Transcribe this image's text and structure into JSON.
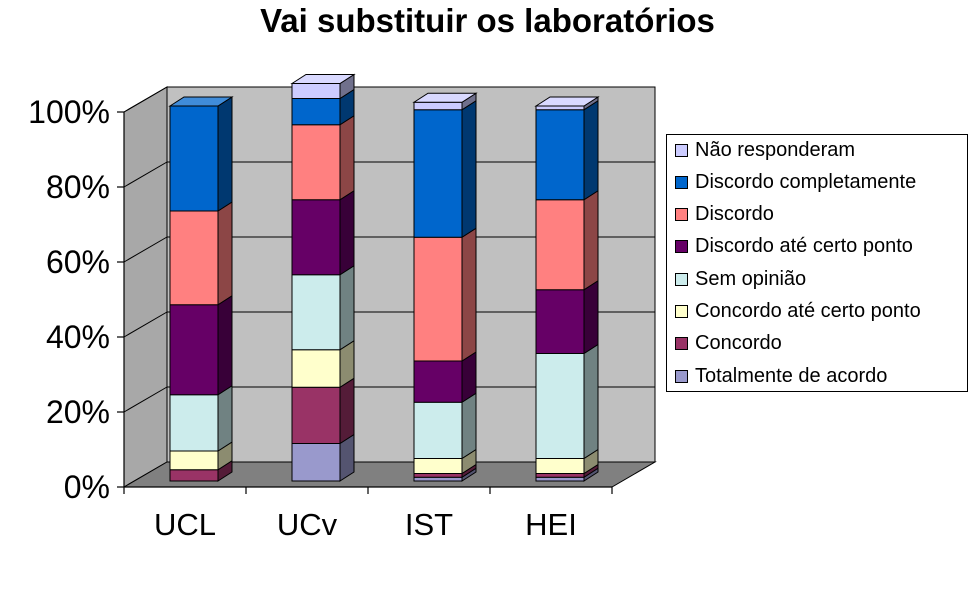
{
  "chart_data": {
    "type": "bar",
    "stacked": true,
    "three_d": true,
    "title": "Vai substituir os laboratórios",
    "categories": [
      "UCL",
      "UCv",
      "IST",
      "HEI"
    ],
    "y_ticks": [
      "0%",
      "20%",
      "40%",
      "60%",
      "80%",
      "100%"
    ],
    "ylim": [
      0,
      100
    ],
    "grid": true,
    "legend_position": "right",
    "series": [
      {
        "name": "Totalmente de acordo",
        "values": [
          0,
          10,
          1,
          1
        ],
        "color": "#9999cc"
      },
      {
        "name": "Concordo",
        "values": [
          3,
          15,
          1,
          1
        ],
        "color": "#993366"
      },
      {
        "name": "Concordo até certo ponto",
        "values": [
          5,
          10,
          4,
          4
        ],
        "color": "#ffffcc"
      },
      {
        "name": "Sem opinião",
        "values": [
          15,
          20,
          15,
          28
        ],
        "color": "#ccecec"
      },
      {
        "name": "Discordo até certo ponto",
        "values": [
          24,
          20,
          11,
          17
        ],
        "color": "#660066"
      },
      {
        "name": "Discordo",
        "values": [
          25,
          20,
          33,
          24
        ],
        "color": "#ff8080"
      },
      {
        "name": "Discordo completamente",
        "values": [
          28,
          7,
          34,
          24
        ],
        "color": "#0066cc"
      },
      {
        "name": "Não responderam",
        "values": [
          0,
          4,
          2,
          1
        ],
        "color": "#ccccff"
      }
    ]
  }
}
